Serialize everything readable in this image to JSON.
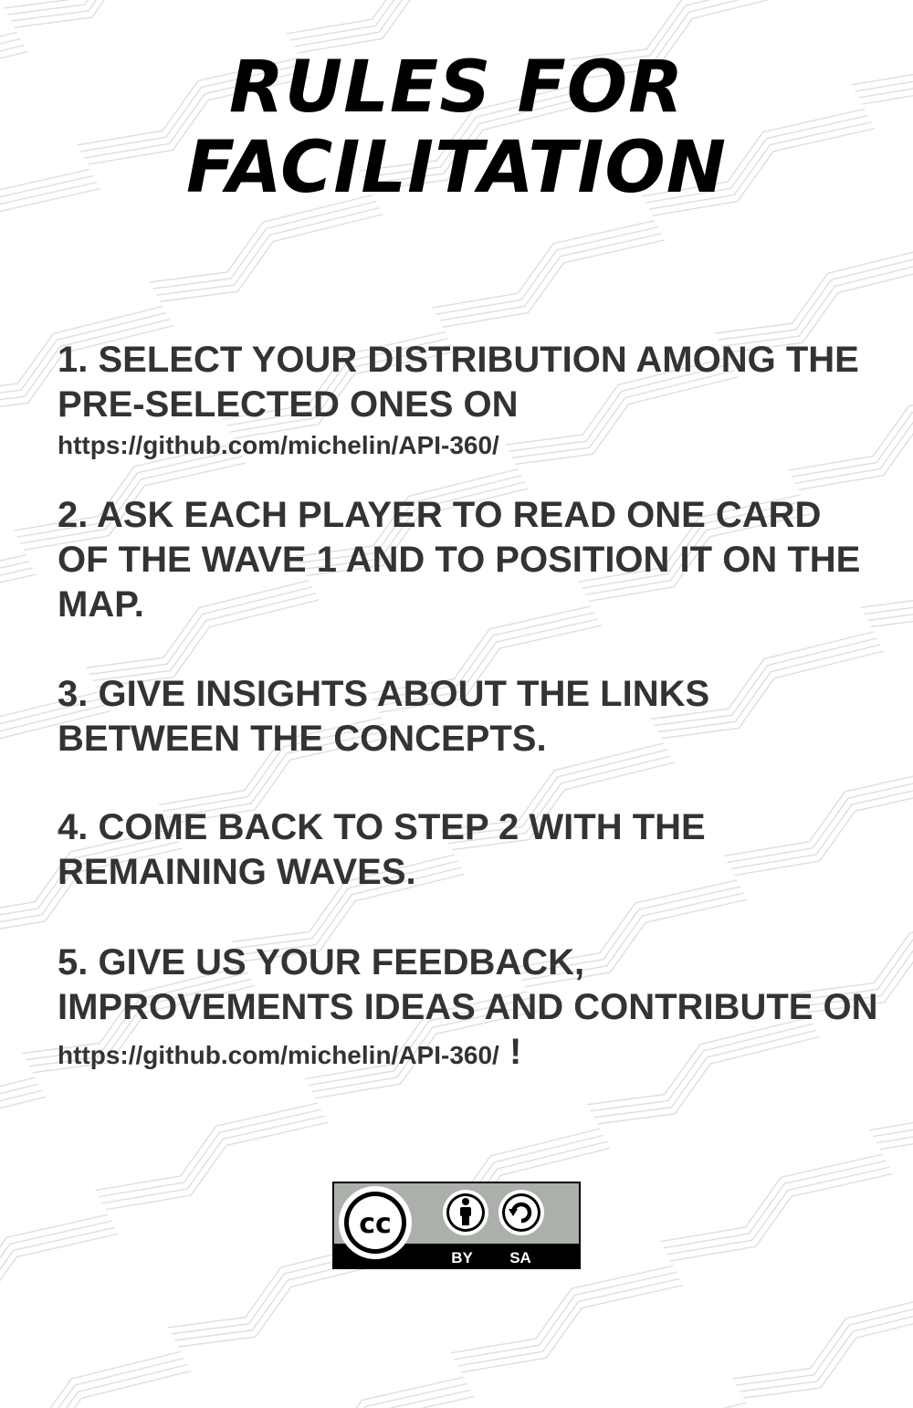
{
  "title": {
    "line1": "RULES FOR",
    "line2": "FACILITATION"
  },
  "rules": [
    {
      "text": "1. SELECT YOUR DISTRIBUTION AMONG THE PRE-SELECTED ONES ON",
      "url": "https://github.com/michelin/API-360/"
    },
    {
      "text": "2. ASK EACH PLAYER TO READ ONE CARD OF THE WAVE 1 AND TO POSITION IT ON THE MAP."
    },
    {
      "text": "3. GIVE INSIGHTS ABOUT THE LINKS BETWEEN THE CONCEPTS."
    },
    {
      "text": "4. COME BACK TO STEP 2 WITH THE REMAINING WAVES."
    },
    {
      "text": "5. GIVE US YOUR FEEDBACK, IMPROVEMENTS IDEAS AND CONTRIBUTE ON",
      "url": "https://github.com/michelin/API-360/",
      "suffix": "!"
    }
  ],
  "license": {
    "badge": "CC BY-SA",
    "cc_text": "cc",
    "by_label": "BY",
    "sa_label": "SA",
    "icons": [
      "cc-icon",
      "attribution-icon",
      "share-alike-icon"
    ]
  },
  "colors": {
    "title": "#000000",
    "body_text": "#333333",
    "pattern_stroke": "#dcdcdc",
    "badge_gray": "#abb1aa"
  }
}
